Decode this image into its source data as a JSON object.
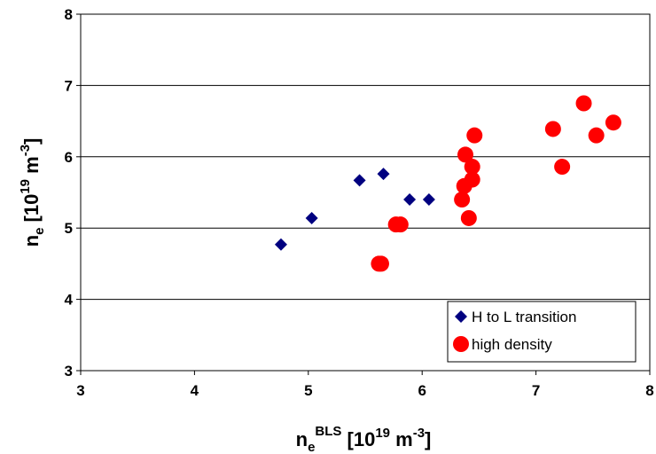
{
  "chart_data": {
    "type": "scatter",
    "title": "",
    "xlabel": {
      "base": "n",
      "sub": "e",
      "sup": "BLS",
      "rest": " [10",
      "rest_sup": "19",
      "rest2": " m",
      "rest2_sup": "-3",
      "rest3": "]"
    },
    "ylabel": {
      "base": "n",
      "sub": "e",
      "rest": " [10",
      "rest_sup": "19",
      "rest2": " m",
      "rest2_sup": "-3",
      "rest3": "]"
    },
    "xlim": [
      3,
      8
    ],
    "ylim": [
      3,
      8
    ],
    "xticks": [
      "3",
      "4",
      "5",
      "6",
      "7",
      "8"
    ],
    "yticks": [
      "3",
      "4",
      "5",
      "6",
      "7",
      "8"
    ],
    "grid": "horizontal",
    "legend_position": "bottom-right",
    "series": [
      {
        "name": "H to L transition",
        "marker": "diamond",
        "color": "#000080",
        "points": [
          [
            4.76,
            4.77
          ],
          [
            5.03,
            5.14
          ],
          [
            5.45,
            5.67
          ],
          [
            5.66,
            5.76
          ],
          [
            5.89,
            5.4
          ],
          [
            6.06,
            5.4
          ]
        ]
      },
      {
        "name": "high density",
        "marker": "circle",
        "color": "#ff0000",
        "points": [
          [
            5.62,
            4.5
          ],
          [
            5.64,
            4.5
          ],
          [
            5.77,
            5.05
          ],
          [
            5.81,
            5.05
          ],
          [
            6.35,
            5.4
          ],
          [
            6.37,
            5.59
          ],
          [
            6.38,
            6.03
          ],
          [
            6.41,
            5.14
          ],
          [
            6.44,
            5.86
          ],
          [
            6.44,
            5.68
          ],
          [
            6.46,
            6.3
          ],
          [
            7.15,
            6.39
          ],
          [
            7.23,
            5.86
          ],
          [
            7.42,
            6.75
          ],
          [
            7.53,
            6.3
          ],
          [
            7.68,
            6.48
          ]
        ]
      }
    ]
  }
}
